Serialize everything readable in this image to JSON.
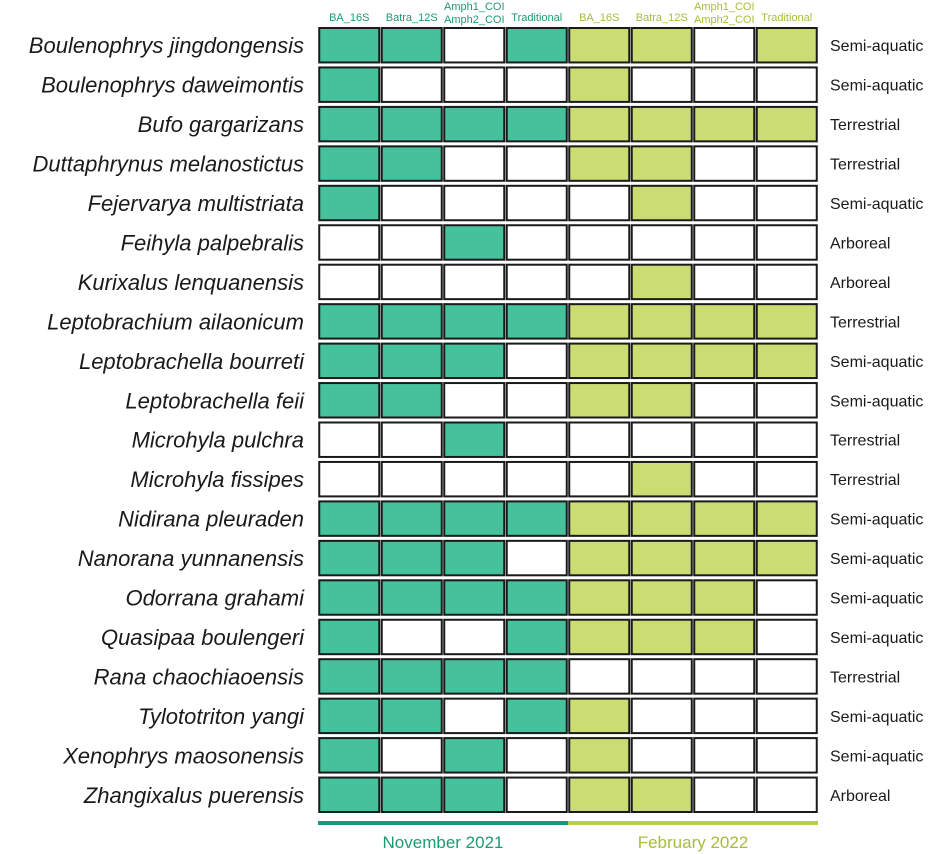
{
  "chart_data": {
    "type": "table",
    "colors": {
      "november": "#45c19b",
      "february": "#cbdd72",
      "november_text": "#1e9a72",
      "february_text": "#a8bc3c",
      "november_bar": "#159a7e",
      "february_bar": "#b2d148",
      "empty": "#ffffff",
      "border": "#1a1a1a"
    },
    "periods": [
      {
        "name": "November 2021",
        "methods": [
          "BA_16S",
          "Batra_12S",
          "Amph1_COI\nAmph2_COI",
          "Traditional"
        ]
      },
      {
        "name": "February 2022",
        "methods": [
          "BA_16S",
          "Batra_12S",
          "Amph1_COI\nAmph2_COI",
          "Traditional"
        ]
      }
    ],
    "rows": [
      {
        "species": "Boulenophrys jingdongensis",
        "habitat": "Semi-aquatic",
        "nov": [
          1,
          1,
          0,
          1
        ],
        "feb": [
          1,
          1,
          0,
          1
        ]
      },
      {
        "species": "Boulenophrys daweimontis",
        "habitat": "Semi-aquatic",
        "nov": [
          1,
          0,
          0,
          0
        ],
        "feb": [
          1,
          0,
          0,
          0
        ]
      },
      {
        "species": "Bufo gargarizans",
        "habitat": "Terrestrial",
        "nov": [
          1,
          1,
          1,
          1
        ],
        "feb": [
          1,
          1,
          1,
          1
        ]
      },
      {
        "species": "Duttaphrynus melanostictus",
        "habitat": "Terrestrial",
        "nov": [
          1,
          1,
          0,
          0
        ],
        "feb": [
          1,
          1,
          0,
          0
        ]
      },
      {
        "species": "Fejervarya multistriata",
        "habitat": "Semi-aquatic",
        "nov": [
          1,
          0,
          0,
          0
        ],
        "feb": [
          0,
          1,
          0,
          0
        ]
      },
      {
        "species": "Feihyla palpebralis",
        "habitat": "Arboreal",
        "nov": [
          0,
          0,
          1,
          0
        ],
        "feb": [
          0,
          0,
          0,
          0
        ]
      },
      {
        "species": "Kurixalus lenquanensis",
        "habitat": "Arboreal",
        "nov": [
          0,
          0,
          0,
          0
        ],
        "feb": [
          0,
          1,
          0,
          0
        ]
      },
      {
        "species": "Leptobrachium ailaonicum",
        "habitat": "Terrestrial",
        "nov": [
          1,
          1,
          1,
          1
        ],
        "feb": [
          1,
          1,
          1,
          1
        ]
      },
      {
        "species": "Leptobrachella bourreti",
        "habitat": "Semi-aquatic",
        "nov": [
          1,
          1,
          1,
          0
        ],
        "feb": [
          1,
          1,
          1,
          1
        ]
      },
      {
        "species": "Leptobrachella feii",
        "habitat": "Semi-aquatic",
        "nov": [
          1,
          1,
          0,
          0
        ],
        "feb": [
          1,
          1,
          0,
          0
        ]
      },
      {
        "species": "Microhyla pulchra",
        "habitat": "Terrestrial",
        "nov": [
          0,
          0,
          1,
          0
        ],
        "feb": [
          0,
          0,
          0,
          0
        ]
      },
      {
        "species": "Microhyla fissipes",
        "habitat": "Terrestrial",
        "nov": [
          0,
          0,
          0,
          0
        ],
        "feb": [
          0,
          1,
          0,
          0
        ]
      },
      {
        "species": "Nidirana pleuraden",
        "habitat": "Semi-aquatic",
        "nov": [
          1,
          1,
          1,
          1
        ],
        "feb": [
          1,
          1,
          1,
          1
        ]
      },
      {
        "species": "Nanorana yunnanensis",
        "habitat": "Semi-aquatic",
        "nov": [
          1,
          1,
          1,
          0
        ],
        "feb": [
          1,
          1,
          1,
          1
        ]
      },
      {
        "species": "Odorrana grahami",
        "habitat": "Semi-aquatic",
        "nov": [
          1,
          1,
          1,
          1
        ],
        "feb": [
          1,
          1,
          1,
          0
        ]
      },
      {
        "species": "Quasipaa boulengeri",
        "habitat": "Semi-aquatic",
        "nov": [
          1,
          0,
          0,
          1
        ],
        "feb": [
          1,
          1,
          1,
          0
        ]
      },
      {
        "species": "Rana chaochiaoensis",
        "habitat": "Terrestrial",
        "nov": [
          1,
          1,
          1,
          1
        ],
        "feb": [
          0,
          0,
          0,
          0
        ]
      },
      {
        "species": "Tylototriton yangi",
        "habitat": "Semi-aquatic",
        "nov": [
          1,
          1,
          0,
          1
        ],
        "feb": [
          1,
          0,
          0,
          0
        ]
      },
      {
        "species": "Xenophrys maosonensis",
        "habitat": "Semi-aquatic",
        "nov": [
          1,
          0,
          1,
          0
        ],
        "feb": [
          1,
          0,
          0,
          0
        ]
      },
      {
        "species": "Zhangixalus puerensis",
        "habitat": "Arboreal",
        "nov": [
          1,
          1,
          1,
          0
        ],
        "feb": [
          1,
          1,
          0,
          0
        ]
      }
    ]
  }
}
